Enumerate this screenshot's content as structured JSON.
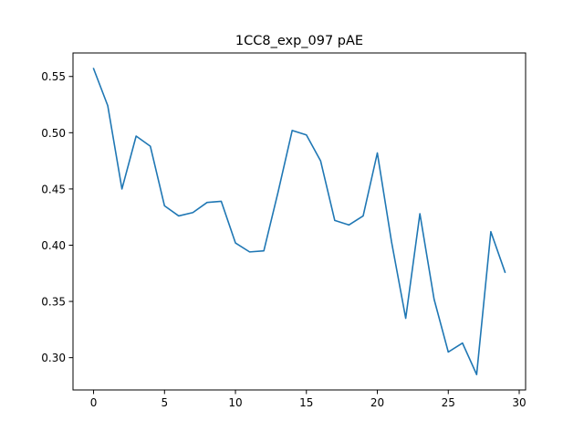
{
  "chart_data": {
    "type": "line",
    "title": "1CC8_exp_097 pAE",
    "xlabel": "",
    "ylabel": "",
    "xlim": [
      -1.45,
      30.45
    ],
    "ylim": [
      0.2713,
      0.5709
    ],
    "xticks": [
      0,
      5,
      10,
      15,
      20,
      25,
      30
    ],
    "xtick_labels": [
      "0",
      "5",
      "10",
      "15",
      "20",
      "25",
      "30"
    ],
    "yticks": [
      0.3,
      0.35,
      0.4,
      0.45,
      0.5,
      0.55
    ],
    "ytick_labels": [
      "0.30",
      "0.35",
      "0.40",
      "0.45",
      "0.50",
      "0.55"
    ],
    "grid": false,
    "legend": "none",
    "series": [
      {
        "color": "#1f77b4",
        "x": [
          0,
          1,
          2,
          3,
          4,
          5,
          6,
          7,
          8,
          9,
          10,
          11,
          12,
          13,
          14,
          15,
          16,
          17,
          18,
          19,
          20,
          21,
          22,
          23,
          24,
          25,
          26,
          27,
          28,
          29
        ],
        "y": [
          0.557,
          0.524,
          0.45,
          0.497,
          0.488,
          0.435,
          0.426,
          0.429,
          0.438,
          0.439,
          0.402,
          0.394,
          0.395,
          0.447,
          0.502,
          0.498,
          0.475,
          0.422,
          0.418,
          0.426,
          0.482,
          0.403,
          0.335,
          0.428,
          0.352,
          0.305,
          0.313,
          0.285,
          0.412,
          0.376
        ]
      }
    ]
  }
}
